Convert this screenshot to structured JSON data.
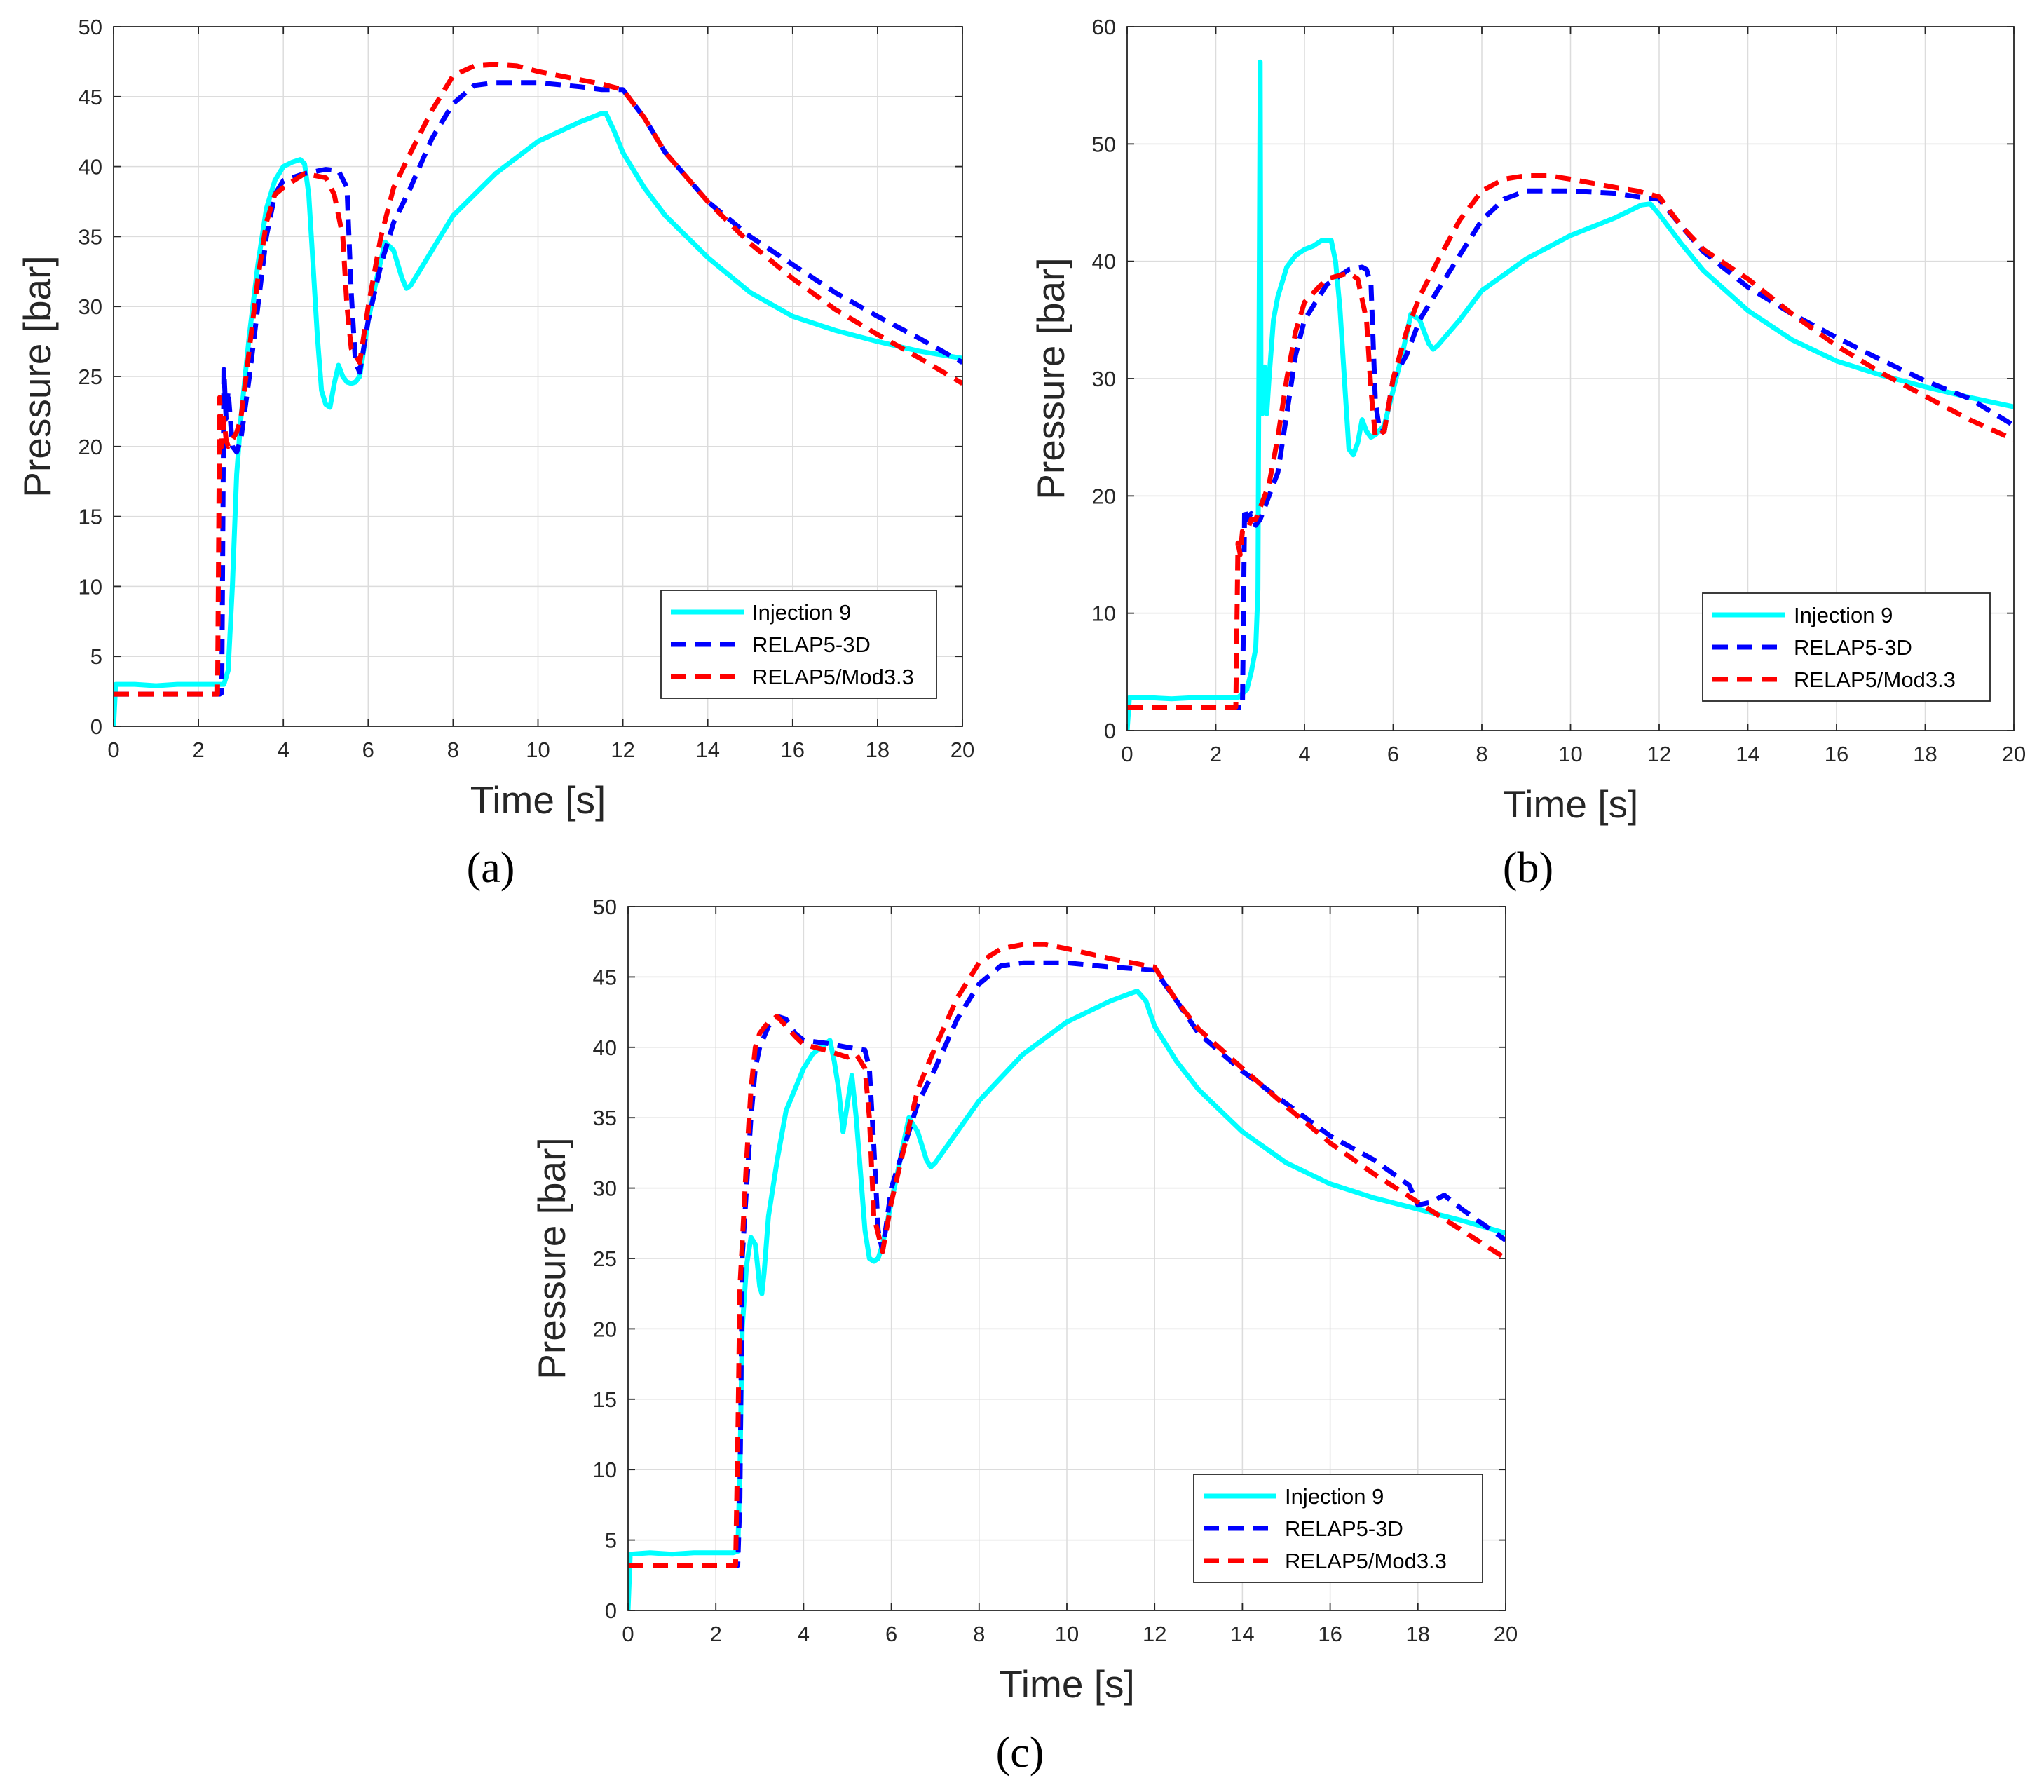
{
  "figure": {
    "panel_labels": [
      "(a)",
      "(b)",
      "(c)"
    ]
  },
  "series_styles": [
    {
      "name": "Injection 9",
      "color": "#00FFFF",
      "dash": "solid"
    },
    {
      "name": "RELAP5-3D",
      "color": "#0000FF",
      "dash": "dashed"
    },
    {
      "name": "RELAP5/Mod3.3",
      "color": "#FF0000",
      "dash": "dashed"
    }
  ],
  "chart_data": [
    {
      "type": "line",
      "panel": "(a)",
      "xlabel": "Time [s]",
      "ylabel": "Pressure [bar]",
      "xlim": [
        0,
        20
      ],
      "ylim": [
        0,
        50
      ],
      "xticks": [
        0,
        2,
        4,
        6,
        8,
        10,
        12,
        14,
        16,
        18,
        20
      ],
      "yticks": [
        0,
        5,
        10,
        15,
        20,
        25,
        30,
        35,
        40,
        45,
        50
      ],
      "grid": true,
      "legend_position": "bottom-right",
      "series": [
        {
          "name": "Injection 9",
          "x": [
            0,
            0.05,
            0.5,
            1,
            1.5,
            2,
            2.4,
            2.55,
            2.6,
            2.7,
            2.8,
            2.9,
            3.0,
            3.2,
            3.4,
            3.6,
            3.8,
            4.0,
            4.2,
            4.4,
            4.5,
            4.6,
            4.7,
            4.8,
            4.9,
            5.0,
            5.1,
            5.2,
            5.3,
            5.4,
            5.5,
            5.6,
            5.7,
            5.8,
            6.0,
            6.2,
            6.4,
            6.6,
            6.8,
            6.9,
            7.0,
            7.5,
            8,
            9,
            10,
            11,
            11.5,
            11.6,
            11.8,
            12,
            12.5,
            13,
            14,
            15,
            16,
            17,
            18,
            19,
            20
          ],
          "values": [
            0,
            3.0,
            3.0,
            2.9,
            3.0,
            3.0,
            3.0,
            3.0,
            3.0,
            4,
            10,
            18,
            22,
            28,
            33,
            37,
            39,
            40,
            40.3,
            40.5,
            40.2,
            38,
            33,
            28,
            24,
            23,
            22.8,
            24.5,
            25.8,
            25,
            24.6,
            24.5,
            24.6,
            25,
            29,
            32,
            34.6,
            34,
            32,
            31.3,
            31.5,
            34,
            36.5,
            39.5,
            41.8,
            43.2,
            43.8,
            43.8,
            42.5,
            41,
            38.5,
            36.5,
            33.5,
            31,
            29.3,
            28.3,
            27.5,
            26.8,
            26.3
          ]
        },
        {
          "name": "RELAP5-3D",
          "x": [
            0,
            1,
            2,
            2.5,
            2.55,
            2.6,
            2.65,
            2.7,
            2.8,
            2.9,
            3.0,
            3.2,
            3.4,
            3.6,
            3.8,
            4.0,
            4.5,
            5.0,
            5.3,
            5.5,
            5.6,
            5.7,
            5.8,
            6.0,
            6.3,
            6.6,
            7,
            7.5,
            8,
            8.5,
            9,
            10,
            11,
            11.5,
            12,
            12.5,
            13,
            14,
            15,
            16,
            17,
            18,
            19,
            20
          ],
          "values": [
            2.3,
            2.3,
            2.3,
            2.3,
            2.4,
            25.5,
            22,
            24,
            20,
            19.6,
            20.5,
            25,
            30,
            35,
            38,
            39,
            39.5,
            39.8,
            39.7,
            38.5,
            31,
            26,
            25.3,
            29,
            33,
            36,
            38.5,
            42,
            44.5,
            45.8,
            46,
            46,
            45.7,
            45.5,
            45.5,
            43.5,
            41,
            37.5,
            35,
            33,
            31,
            29.3,
            27.7,
            26.0
          ]
        },
        {
          "name": "RELAP5/Mod3.3",
          "x": [
            0,
            1,
            2,
            2.4,
            2.45,
            2.5,
            2.55,
            2.6,
            2.65,
            2.7,
            2.8,
            2.9,
            3.0,
            3.2,
            3.4,
            3.6,
            3.8,
            4.0,
            4.5,
            5.0,
            5.2,
            5.4,
            5.5,
            5.6,
            5.8,
            6.0,
            6.3,
            6.6,
            7,
            7.5,
            8,
            8.5,
            9,
            9.5,
            10,
            11,
            11.5,
            12,
            12.5,
            13,
            14,
            15,
            16,
            17,
            18,
            19,
            20
          ],
          "values": [
            2.3,
            2.3,
            2.3,
            2.3,
            2.3,
            23.5,
            20,
            22,
            20.5,
            20,
            20.5,
            21,
            22,
            27,
            32,
            36,
            38,
            38.5,
            39.5,
            39.2,
            38,
            35,
            30,
            27,
            26,
            30,
            35,
            38.5,
            41,
            44,
            46.5,
            47.2,
            47.3,
            47.2,
            46.8,
            46.2,
            45.9,
            45.5,
            43.5,
            41,
            37.5,
            34.5,
            32,
            29.8,
            28,
            26.3,
            24.5
          ]
        }
      ],
      "legend": [
        "Injection 9",
        "RELAP5-3D",
        "RELAP5/Mod3.3"
      ]
    },
    {
      "type": "line",
      "panel": "(b)",
      "xlabel": "Time [s]",
      "ylabel": "Pressure [bar]",
      "xlim": [
        0,
        20
      ],
      "ylim": [
        0,
        60
      ],
      "xticks": [
        0,
        2,
        4,
        6,
        8,
        10,
        12,
        14,
        16,
        18,
        20
      ],
      "yticks": [
        0,
        10,
        20,
        30,
        40,
        50,
        60
      ],
      "grid": true,
      "legend_position": "bottom-right",
      "series": [
        {
          "name": "Injection 9",
          "x": [
            0,
            0.05,
            0.5,
            1,
            1.5,
            2,
            2.5,
            2.7,
            2.8,
            2.9,
            2.95,
            3.0,
            3.02,
            3.05,
            3.1,
            3.15,
            3.2,
            3.3,
            3.4,
            3.6,
            3.8,
            4.0,
            4.2,
            4.4,
            4.6,
            4.7,
            4.8,
            4.9,
            5.0,
            5.1,
            5.2,
            5.3,
            5.4,
            5.5,
            5.6,
            5.8,
            6.0,
            6.2,
            6.4,
            6.6,
            6.8,
            6.9,
            7.0,
            7.5,
            8,
            9,
            10,
            11,
            11.6,
            11.8,
            12,
            12.5,
            13,
            14,
            15,
            16,
            17,
            18,
            19,
            20
          ],
          "values": [
            0,
            2.8,
            2.8,
            2.7,
            2.8,
            2.8,
            2.8,
            3.5,
            5,
            7,
            12,
            57,
            28,
            27,
            31,
            27,
            30,
            35,
            37,
            39.5,
            40.5,
            41,
            41.3,
            41.8,
            41.8,
            40,
            36,
            30,
            24,
            23.5,
            24.5,
            26.5,
            25.5,
            25,
            25.2,
            26,
            29,
            32,
            35.5,
            35,
            33,
            32.5,
            32.8,
            35,
            37.5,
            40.2,
            42.2,
            43.7,
            44.8,
            44.9,
            44,
            41.5,
            39.2,
            35.8,
            33.3,
            31.5,
            30.3,
            29.3,
            28.4,
            27.6
          ]
        },
        {
          "name": "RELAP5-3D",
          "x": [
            0,
            1,
            2,
            2.5,
            2.6,
            2.65,
            2.7,
            2.8,
            2.9,
            3.0,
            3.2,
            3.4,
            3.6,
            3.8,
            4.0,
            4.5,
            5.0,
            5.3,
            5.4,
            5.5,
            5.6,
            5.7,
            5.8,
            6.0,
            6.3,
            6.6,
            7,
            7.5,
            8,
            8.5,
            9,
            10,
            11,
            11.5,
            12,
            12.5,
            13,
            14,
            15,
            16,
            17,
            18,
            19,
            20
          ],
          "values": [
            2,
            2,
            2,
            2,
            2,
            19,
            18,
            18.5,
            17.5,
            18,
            20,
            22,
            27,
            32,
            35,
            38,
            39.3,
            39.5,
            39.3,
            38,
            28,
            25.5,
            25.5,
            30,
            32,
            35,
            37.5,
            40.5,
            43.5,
            45.3,
            46,
            46,
            45.8,
            45.5,
            45.3,
            43,
            40.8,
            37.8,
            35.5,
            33.5,
            31.6,
            29.8,
            28.3,
            26.0
          ]
        },
        {
          "name": "RELAP5/Mod3.3",
          "x": [
            0,
            1,
            2,
            2.45,
            2.5,
            2.55,
            2.6,
            2.7,
            2.8,
            2.9,
            3.0,
            3.2,
            3.4,
            3.6,
            3.8,
            4.0,
            4.5,
            5.0,
            5.2,
            5.4,
            5.5,
            5.6,
            5.8,
            6.0,
            6.3,
            6.6,
            7,
            7.5,
            8,
            8.5,
            9,
            9.5,
            10,
            11,
            11.5,
            12,
            12.5,
            13,
            14,
            15,
            16,
            17,
            18,
            19,
            20
          ],
          "values": [
            2,
            2,
            2,
            2,
            16,
            15,
            17,
            17,
            18,
            18,
            19,
            21,
            25,
            30,
            34,
            36.5,
            38.5,
            39,
            38.5,
            35,
            29,
            25,
            25.5,
            30,
            34,
            37,
            40,
            43.5,
            46,
            47,
            47.3,
            47.3,
            47,
            46.3,
            46,
            45.5,
            43,
            41,
            38.5,
            35.5,
            32.8,
            30.5,
            28.5,
            26.5,
            24.8
          ]
        }
      ],
      "legend": [
        "Injection 9",
        "RELAP5-3D",
        "RELAP5/Mod3.3"
      ]
    },
    {
      "type": "line",
      "panel": "(c)",
      "xlabel": "Time [s]",
      "ylabel": "Pressure [bar]",
      "xlim": [
        0,
        20
      ],
      "ylim": [
        0,
        50
      ],
      "xticks": [
        0,
        2,
        4,
        6,
        8,
        10,
        12,
        14,
        16,
        18,
        20
      ],
      "yticks": [
        0,
        5,
        10,
        15,
        20,
        25,
        30,
        35,
        40,
        45,
        50
      ],
      "grid": true,
      "legend_position": "bottom-right",
      "series": [
        {
          "name": "Injection 9",
          "x": [
            0,
            0.05,
            0.5,
            1,
            1.5,
            2,
            2.4,
            2.5,
            2.55,
            2.6,
            2.7,
            2.8,
            2.9,
            3.0,
            3.05,
            3.1,
            3.2,
            3.4,
            3.6,
            3.8,
            4.0,
            4.2,
            4.4,
            4.6,
            4.7,
            4.8,
            4.9,
            5.0,
            5.1,
            5.2,
            5.3,
            5.4,
            5.5,
            5.6,
            5.7,
            5.8,
            5.9,
            6.0,
            6.2,
            6.4,
            6.6,
            6.8,
            6.9,
            7.0,
            7.5,
            8,
            9,
            10,
            11,
            11.6,
            11.8,
            12,
            12.5,
            13,
            14,
            15,
            16,
            17,
            18,
            19,
            20
          ],
          "values": [
            0,
            4,
            4.1,
            4.0,
            4.1,
            4.1,
            4.1,
            4.2,
            10,
            20,
            24.5,
            26.5,
            26,
            23,
            22.5,
            24,
            28,
            32,
            35.5,
            37,
            38.5,
            39.5,
            40,
            40.5,
            39,
            37,
            34,
            36,
            38,
            35,
            31,
            27,
            25,
            24.8,
            25,
            26,
            27.5,
            29,
            32,
            35,
            34,
            32,
            31.5,
            31.8,
            34,
            36.2,
            39.5,
            41.8,
            43.3,
            44,
            43.3,
            41.5,
            39,
            37,
            34,
            31.8,
            30.3,
            29.3,
            28.5,
            27.7,
            26.8
          ]
        },
        {
          "name": "RELAP5-3D",
          "x": [
            0,
            1,
            2,
            2.5,
            2.55,
            2.6,
            2.7,
            2.8,
            2.9,
            3.0,
            3.2,
            3.4,
            3.6,
            3.8,
            4.0,
            4.5,
            5.0,
            5.4,
            5.5,
            5.6,
            5.7,
            5.8,
            6.0,
            6.3,
            6.6,
            7,
            7.5,
            8,
            8.5,
            9,
            10,
            11,
            11.5,
            12,
            12.5,
            13,
            14,
            15,
            16,
            17,
            17.8,
            18,
            18.3,
            18.6,
            19,
            20
          ],
          "values": [
            3.2,
            3.2,
            3.2,
            3.2,
            8,
            25,
            30,
            35,
            38.5,
            40,
            41.5,
            42.2,
            42,
            41,
            40.5,
            40.3,
            40,
            39.8,
            38.5,
            33,
            27,
            25.5,
            30,
            33,
            36,
            38.5,
            42,
            44.5,
            45.8,
            46,
            46,
            45.7,
            45.6,
            45.5,
            43.3,
            41,
            38.3,
            36,
            33.7,
            32,
            30.2,
            28.8,
            29,
            29.5,
            28.5,
            26.3
          ]
        },
        {
          "name": "RELAP5/Mod3.3",
          "x": [
            0,
            1,
            2,
            2.45,
            2.5,
            2.55,
            2.6,
            2.7,
            2.8,
            2.9,
            3.0,
            3.2,
            3.4,
            3.6,
            3.8,
            4.0,
            4.5,
            5.0,
            5.2,
            5.4,
            5.5,
            5.6,
            5.8,
            6.0,
            6.3,
            6.6,
            7,
            7.5,
            8,
            8.5,
            9,
            9.5,
            10,
            11,
            11.5,
            12,
            12.5,
            13,
            14,
            15,
            16,
            17,
            18,
            19,
            20
          ],
          "values": [
            3.2,
            3.2,
            3.2,
            3.2,
            12,
            23,
            26,
            32,
            37,
            40,
            41,
            41.8,
            42.2,
            41.5,
            40.8,
            40.2,
            39.8,
            39.3,
            39.5,
            38.5,
            35,
            28,
            25.5,
            29,
            33,
            37,
            40,
            43.5,
            46,
            47,
            47.3,
            47.3,
            47,
            46.3,
            46,
            45.7,
            43.3,
            41.3,
            38.5,
            35.8,
            33.2,
            31,
            29,
            27,
            25
          ]
        }
      ],
      "legend": [
        "Injection 9",
        "RELAP5-3D",
        "RELAP5/Mod3.3"
      ]
    }
  ]
}
